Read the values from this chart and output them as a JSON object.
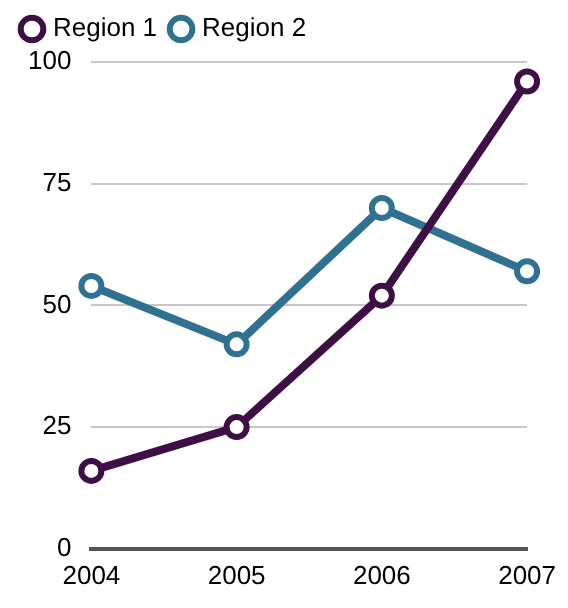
{
  "chart_data": {
    "type": "line",
    "categories": [
      "2004",
      "2005",
      "2006",
      "2007"
    ],
    "series": [
      {
        "name": "Region 1",
        "color": "#3d0f45",
        "values": [
          16,
          25,
          52,
          96
        ]
      },
      {
        "name": "Region 2",
        "color": "#2f7191",
        "values": [
          54,
          42,
          70,
          57
        ]
      }
    ],
    "ylim": [
      0,
      100
    ],
    "yticks": [
      0,
      25,
      50,
      75,
      100
    ],
    "grid": "y",
    "legend": "top",
    "marker": "circle"
  }
}
